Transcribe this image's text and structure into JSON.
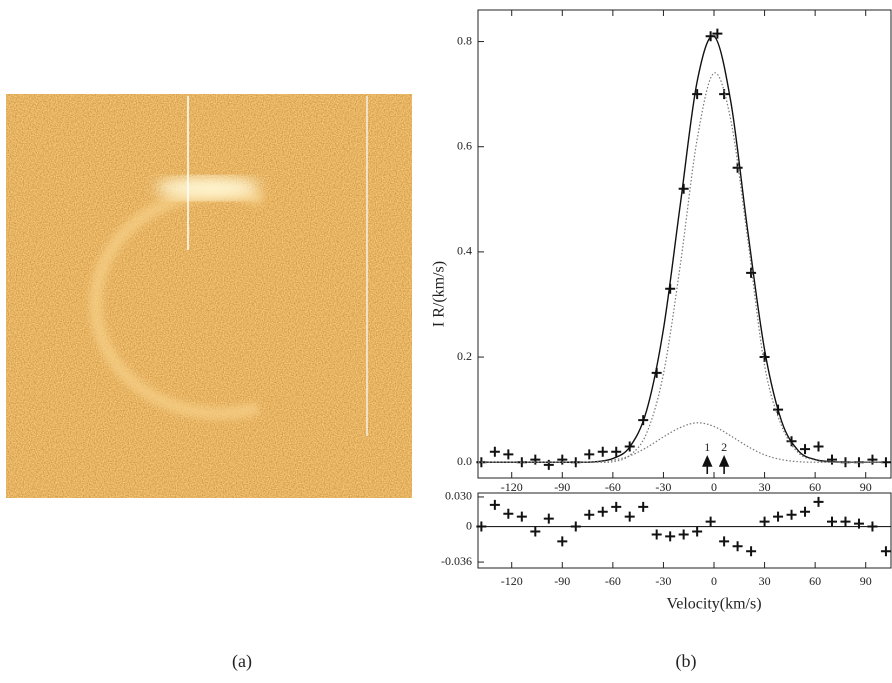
{
  "panels": [
    {
      "caption": "(a)"
    },
    {
      "caption": "(b)"
    }
  ],
  "chart_data": [
    {
      "type": "line",
      "ylabel": "I R/(km/s)",
      "xlim": [
        -140,
        105
      ],
      "ylim": [
        -0.03,
        0.86
      ],
      "xticks": [
        -120,
        -90,
        -60,
        -30,
        0,
        30,
        60,
        90
      ],
      "yticks": [
        {
          "value": 0,
          "label": "0.0"
        },
        0.2,
        0.4,
        0.6,
        0.8
      ],
      "annotations": [
        {
          "text": "1",
          "x": -4
        },
        {
          "text": "2",
          "x": 6
        }
      ],
      "series": [
        {
          "style": "plus",
          "x": [
            -138,
            -130,
            -122,
            -114,
            -106,
            -98,
            -90,
            -82,
            -74,
            -66,
            -58,
            -50,
            -42,
            -34,
            -26,
            -18,
            -10,
            -2,
            2,
            6,
            14,
            22,
            30,
            38,
            46,
            54,
            62,
            70,
            78,
            86,
            94,
            102
          ],
          "values": [
            0.0,
            0.02,
            0.015,
            0.0,
            0.005,
            -0.005,
            0.005,
            0.0,
            0.015,
            0.02,
            0.02,
            0.03,
            0.08,
            0.17,
            0.33,
            0.52,
            0.7,
            0.81,
            0.815,
            0.7,
            0.56,
            0.36,
            0.2,
            0.1,
            0.04,
            0.025,
            0.03,
            0.005,
            0.0,
            0.0,
            0.005,
            0.0
          ]
        },
        {
          "style": "solid",
          "x": [
            -140,
            -130,
            -120,
            -110,
            -100,
            -90,
            -80,
            -70,
            -60,
            -50,
            -40,
            -30,
            -20,
            -10,
            0,
            10,
            20,
            30,
            40,
            50,
            60,
            70,
            80,
            90,
            100
          ],
          "values": [
            0,
            0,
            0,
            0,
            0,
            0,
            0,
            0.001,
            0.007,
            0.029,
            0.098,
            0.253,
            0.49,
            0.724,
            0.81,
            0.685,
            0.44,
            0.214,
            0.079,
            0.022,
            0.005,
            0.001,
            0,
            0,
            0
          ]
        },
        {
          "style": "dotted",
          "x": [
            -140,
            -130,
            -120,
            -110,
            -100,
            -90,
            -80,
            -70,
            -60,
            -50,
            -40,
            -30,
            -20,
            -10,
            0,
            10,
            20,
            30,
            40,
            50,
            60,
            70,
            80,
            90,
            100
          ],
          "values": [
            0,
            0,
            0,
            0,
            0,
            0,
            0,
            0,
            0.001,
            0.013,
            0.055,
            0.168,
            0.375,
            0.614,
            0.74,
            0.65,
            0.424,
            0.184,
            0.07,
            0.018,
            0.004,
            0,
            0,
            0,
            0
          ]
        },
        {
          "style": "dotted",
          "x": [
            -140,
            -130,
            -120,
            -110,
            -100,
            -90,
            -80,
            -70,
            -60,
            -50,
            -40,
            -30,
            -20,
            -10,
            0,
            10,
            20,
            30,
            40,
            50,
            60,
            70,
            80,
            90,
            100
          ],
          "values": [
            0,
            0,
            0,
            0,
            0,
            0,
            0,
            0.001,
            0.004,
            0.012,
            0.028,
            0.048,
            0.066,
            0.075,
            0.068,
            0.05,
            0.03,
            0.014,
            0.005,
            0.001,
            0,
            0,
            0,
            0,
            0
          ]
        }
      ]
    },
    {
      "type": "scatter",
      "xlabel": "Velocity(km/s)",
      "xlim": [
        -140,
        105
      ],
      "ylim": [
        -0.042,
        0.034
      ],
      "xticks": [
        -120,
        -90,
        -60,
        -30,
        0,
        30,
        60,
        90
      ],
      "yticks": [
        {
          "value": 0.03,
          "label": "0.030"
        },
        0,
        -0.036
      ],
      "reference_line": 0,
      "series": [
        {
          "style": "plus",
          "x": [
            -138,
            -130,
            -122,
            -114,
            -106,
            -98,
            -90,
            -82,
            -74,
            -66,
            -58,
            -50,
            -42,
            -34,
            -26,
            -18,
            -10,
            -2,
            6,
            14,
            22,
            30,
            38,
            46,
            54,
            62,
            70,
            78,
            86,
            94,
            102
          ],
          "values": [
            0.0,
            0.022,
            0.013,
            0.01,
            -0.005,
            0.008,
            -0.015,
            0.0,
            0.012,
            0.015,
            0.02,
            0.01,
            0.02,
            -0.008,
            -0.01,
            -0.008,
            -0.005,
            0.005,
            -0.015,
            -0.02,
            -0.025,
            0.005,
            0.01,
            0.012,
            0.015,
            0.025,
            0.005,
            0.005,
            0.003,
            0.0,
            -0.025
          ]
        }
      ]
    }
  ]
}
